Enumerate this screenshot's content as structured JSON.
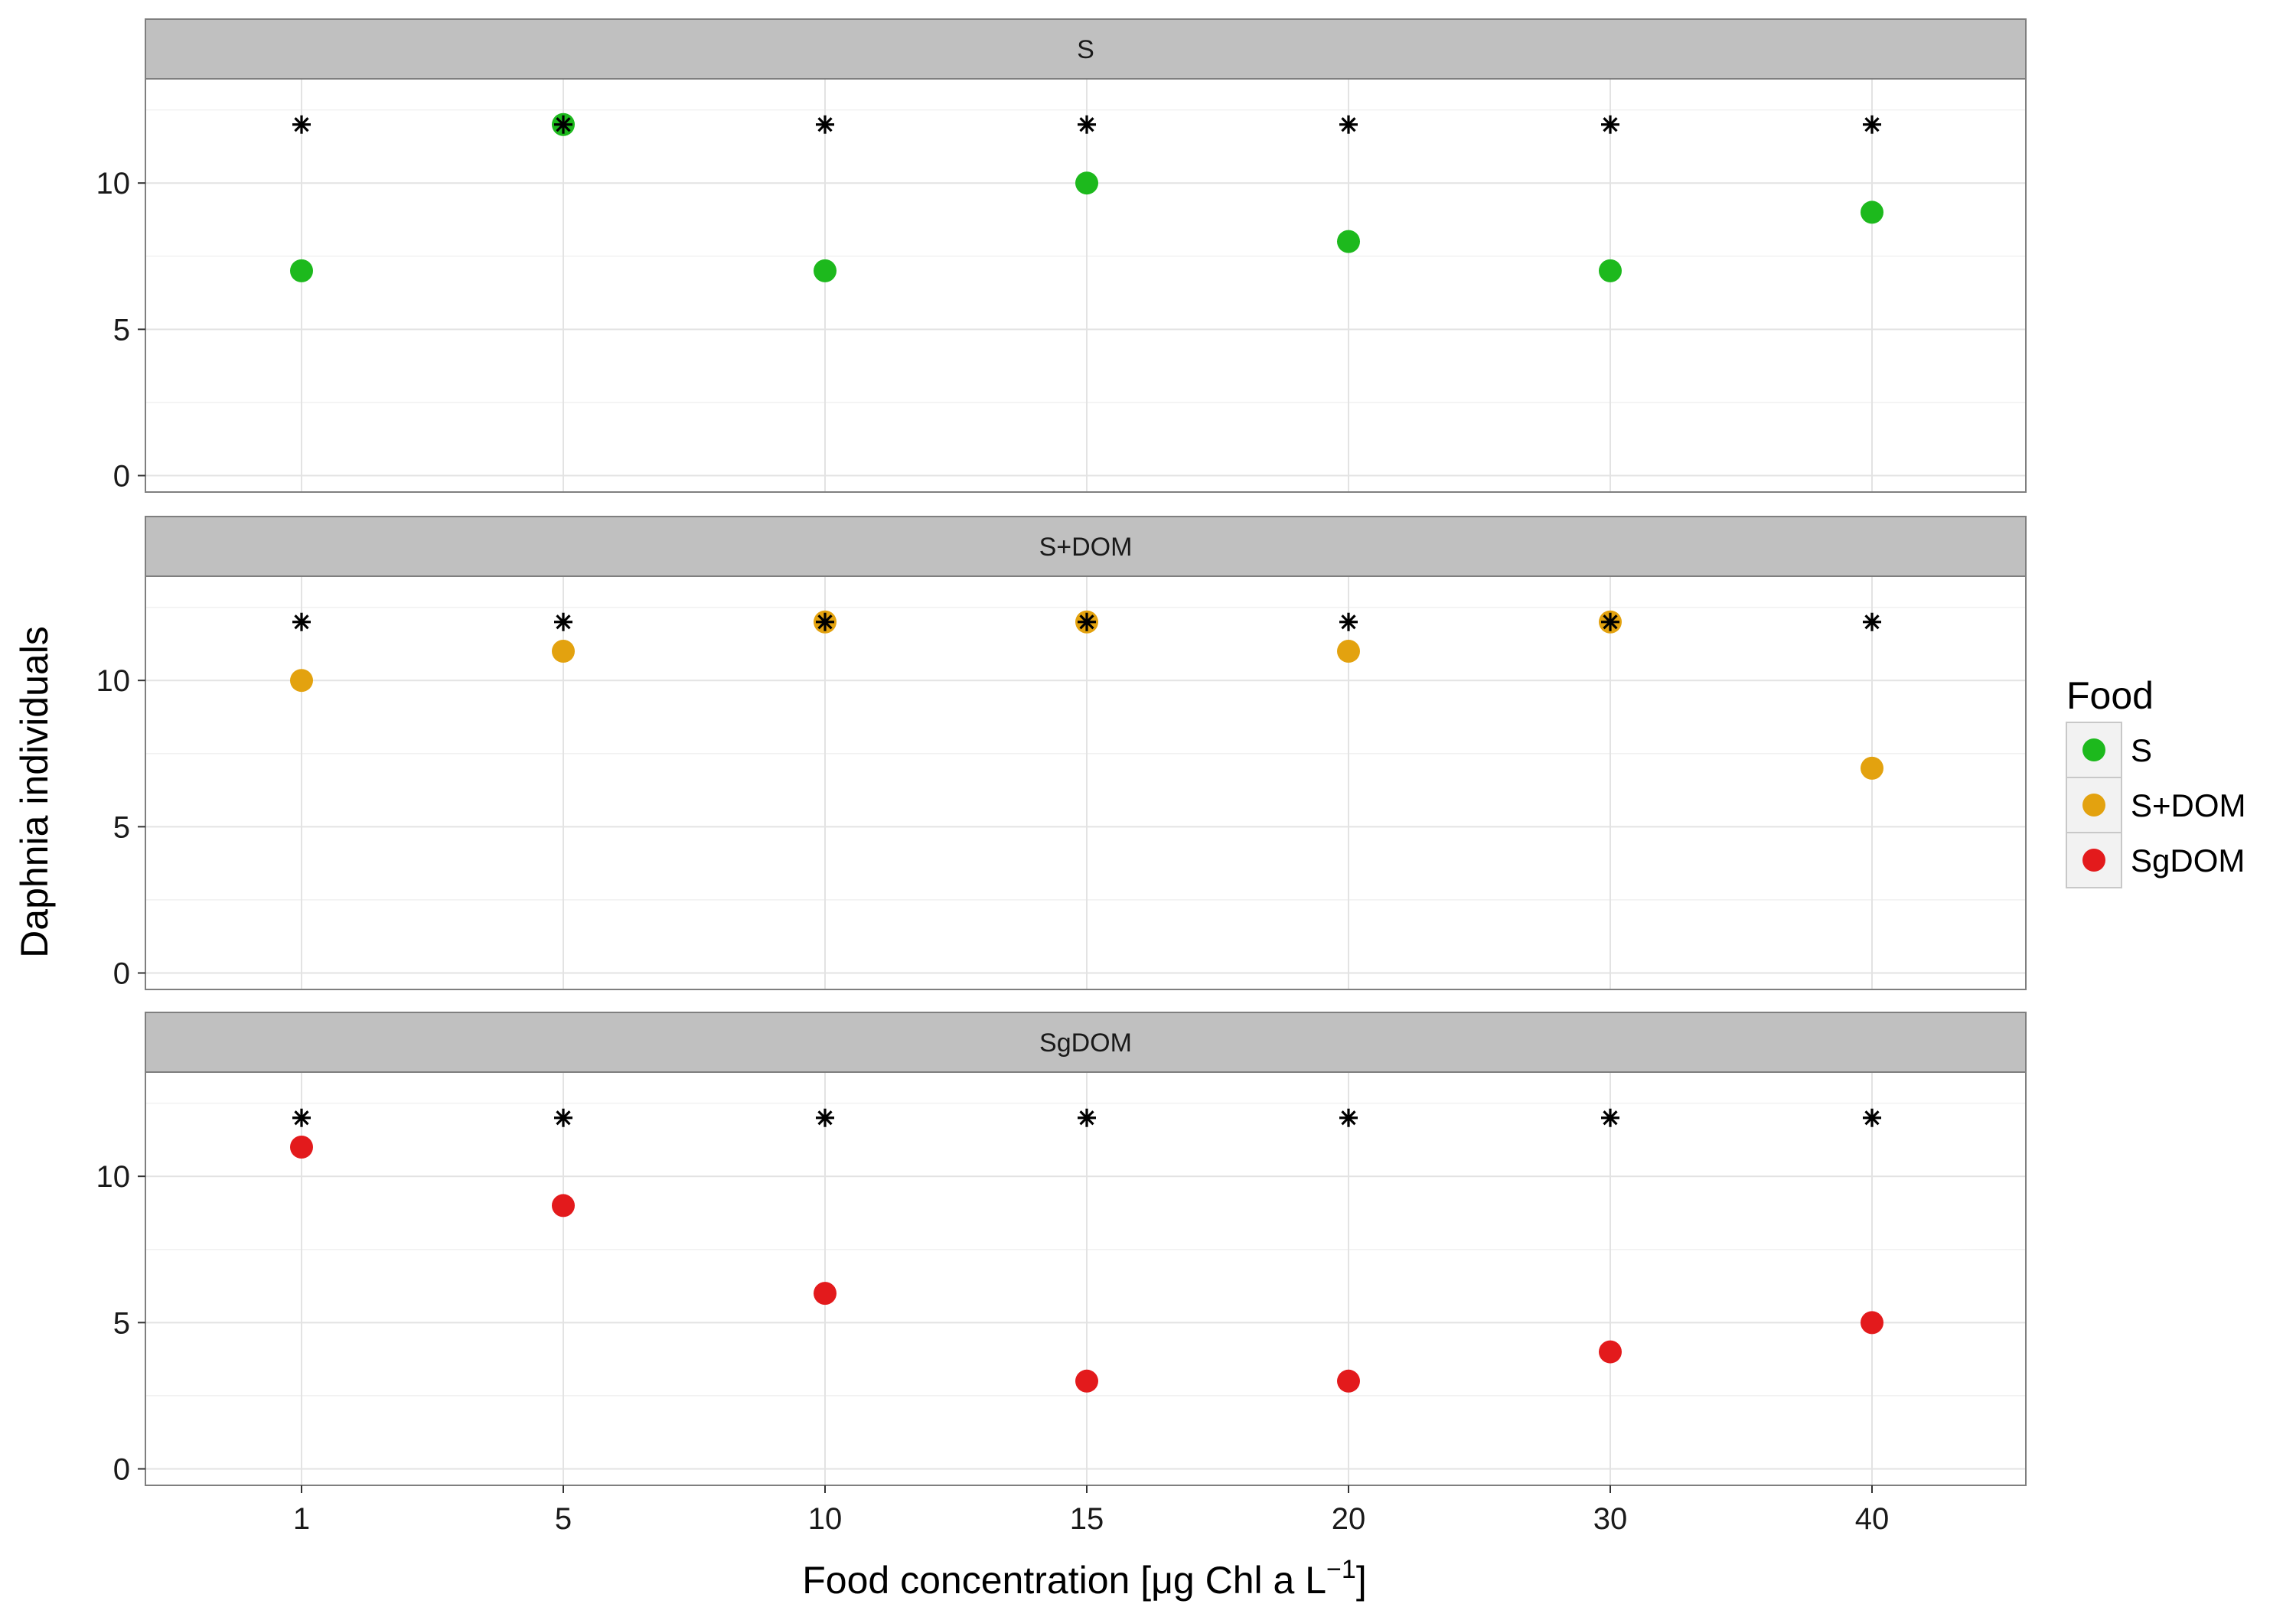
{
  "chart_data": {
    "type": "scatter",
    "facet_by": "Food",
    "categories": [
      "1",
      "5",
      "10",
      "15",
      "20",
      "30",
      "40"
    ],
    "xlabel": "Food concentration [",
    "xlabel_mu": "μ",
    "xlabel_mid": "g Chl a L",
    "xlabel_sup": "−1",
    "xlabel_end": "]",
    "ylabel": "Daphnia individuals",
    "ylim": [
      0,
      13
    ],
    "yticks": [
      "0",
      "5",
      "10"
    ],
    "ytick_values": [
      0,
      5,
      10
    ],
    "grid": true,
    "legend": {
      "title": "Food",
      "position": "right",
      "entries": [
        "S",
        "S+DOM",
        "SgDOM"
      ]
    },
    "reference_marker": {
      "shape": "asterisk",
      "color": "#000000",
      "values": [
        12,
        12,
        12,
        12,
        12,
        12,
        12
      ]
    },
    "panels": [
      {
        "name": "S",
        "color": "#1db91d",
        "values": [
          7,
          12,
          7,
          10,
          8,
          7,
          9
        ]
      },
      {
        "name": "S+DOM",
        "color": "#e3a20f",
        "values": [
          10,
          11,
          12,
          12,
          11,
          12,
          7
        ]
      },
      {
        "name": "SgDOM",
        "color": "#e31a1c",
        "values": [
          11,
          9,
          6,
          3,
          3,
          4,
          5
        ]
      }
    ]
  }
}
